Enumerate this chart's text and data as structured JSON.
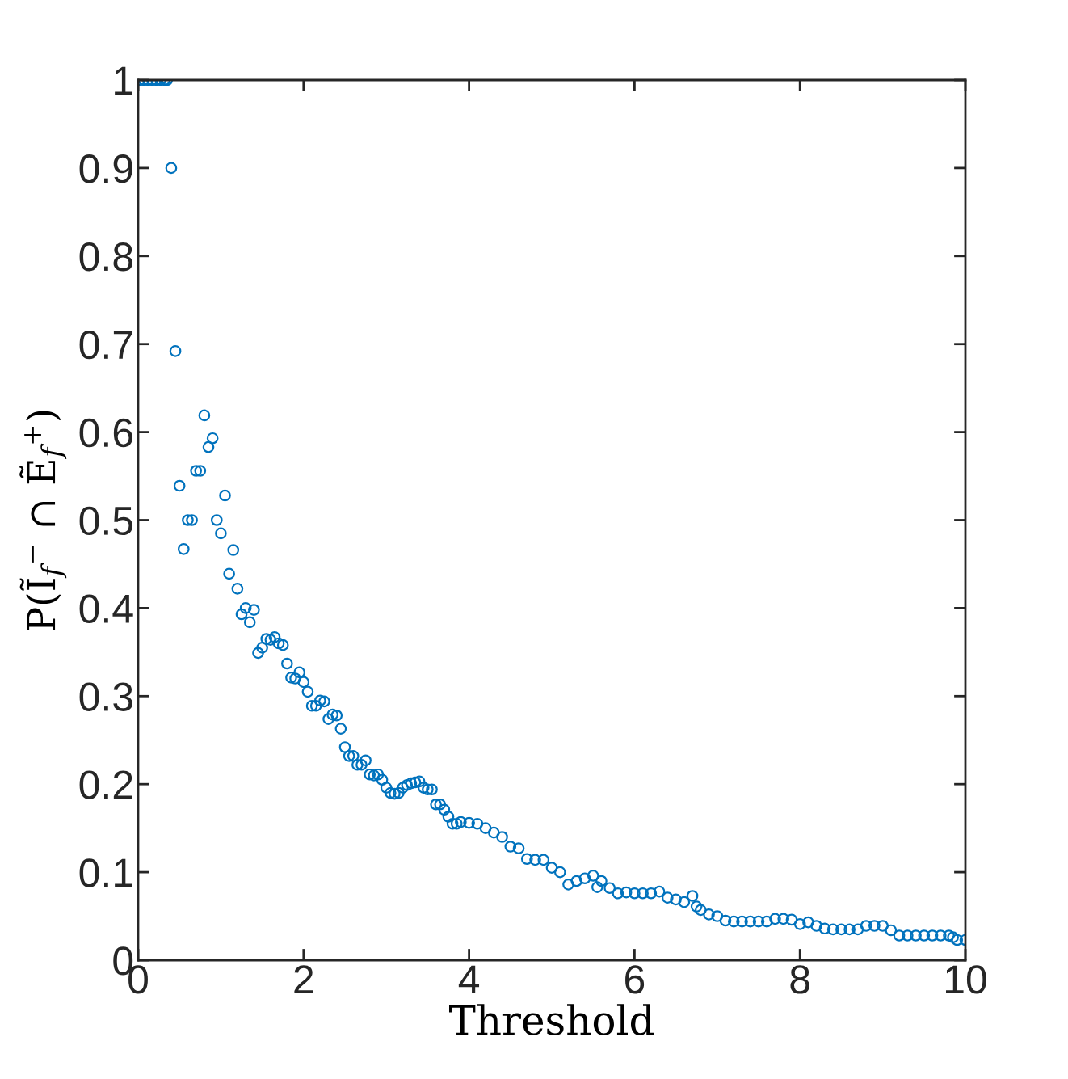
{
  "chart_data": {
    "type": "scatter",
    "xlabel": "Threshold",
    "ylabel": "P(Ĩ$_{f}$$^{−}$ ∩ Ẽ$_{f}$$^{+}$)",
    "marker": "circle",
    "grid": false,
    "legend": false,
    "xlim": [
      0,
      10
    ],
    "ylim": [
      0,
      1
    ],
    "xticks": [
      0,
      2,
      4,
      6,
      8,
      10
    ],
    "yticks": [
      0,
      0.1,
      0.2,
      0.3,
      0.4,
      0.5,
      0.6,
      0.7,
      0.8,
      0.9,
      1
    ],
    "series": [
      {
        "color": "#0072bd",
        "x": [
          0.02,
          0.07,
          0.12,
          0.17,
          0.22,
          0.27,
          0.32,
          0.35,
          0.4,
          0.45,
          0.5,
          0.55,
          0.6,
          0.65,
          0.7,
          0.75,
          0.8,
          0.85,
          0.9,
          0.95,
          1.0,
          1.05,
          1.1,
          1.15,
          1.2,
          1.25,
          1.3,
          1.35,
          1.4,
          1.45,
          1.5,
          1.55,
          1.6,
          1.65,
          1.7,
          1.75,
          1.8,
          1.85,
          1.9,
          1.95,
          2.0,
          2.05,
          2.1,
          2.15,
          2.2,
          2.25,
          2.3,
          2.35,
          2.4,
          2.45,
          2.5,
          2.55,
          2.6,
          2.65,
          2.7,
          2.75,
          2.8,
          2.85,
          2.9,
          2.95,
          3.0,
          3.05,
          3.1,
          3.15,
          3.2,
          3.25,
          3.3,
          3.35,
          3.4,
          3.45,
          3.5,
          3.55,
          3.6,
          3.65,
          3.7,
          3.75,
          3.8,
          3.85,
          3.9,
          4.0,
          4.1,
          4.2,
          4.3,
          4.4,
          4.5,
          4.6,
          4.7,
          4.8,
          4.9,
          5.0,
          5.1,
          5.2,
          5.3,
          5.4,
          5.5,
          5.55,
          5.6,
          5.7,
          5.8,
          5.9,
          6.0,
          6.1,
          6.2,
          6.3,
          6.4,
          6.5,
          6.6,
          6.7,
          6.75,
          6.8,
          6.9,
          7.0,
          7.1,
          7.2,
          7.3,
          7.4,
          7.5,
          7.6,
          7.7,
          7.8,
          7.9,
          8.0,
          8.1,
          8.2,
          8.3,
          8.4,
          8.5,
          8.6,
          8.7,
          8.8,
          8.9,
          9.0,
          9.1,
          9.2,
          9.3,
          9.4,
          9.5,
          9.6,
          9.7,
          9.8,
          9.85,
          9.9,
          10.0
        ],
        "values": [
          1,
          1,
          1,
          1,
          1,
          1,
          1,
          1,
          0.9,
          0.692,
          0.539,
          0.467,
          0.5,
          0.5,
          0.556,
          0.556,
          0.619,
          0.583,
          0.593,
          0.5,
          0.485,
          0.528,
          0.439,
          0.466,
          0.422,
          0.393,
          0.4,
          0.384,
          0.398,
          0.349,
          0.355,
          0.365,
          0.364,
          0.367,
          0.36,
          0.358,
          0.337,
          0.321,
          0.32,
          0.327,
          0.316,
          0.305,
          0.289,
          0.289,
          0.295,
          0.294,
          0.274,
          0.279,
          0.278,
          0.263,
          0.242,
          0.232,
          0.232,
          0.222,
          0.222,
          0.227,
          0.211,
          0.21,
          0.211,
          0.205,
          0.196,
          0.19,
          0.189,
          0.19,
          0.196,
          0.199,
          0.201,
          0.202,
          0.203,
          0.196,
          0.194,
          0.194,
          0.177,
          0.177,
          0.171,
          0.163,
          0.155,
          0.155,
          0.157,
          0.156,
          0.155,
          0.15,
          0.145,
          0.14,
          0.129,
          0.127,
          0.115,
          0.114,
          0.114,
          0.105,
          0.1,
          0.086,
          0.09,
          0.093,
          0.096,
          0.083,
          0.09,
          0.082,
          0.076,
          0.077,
          0.076,
          0.076,
          0.076,
          0.078,
          0.071,
          0.069,
          0.066,
          0.073,
          0.061,
          0.057,
          0.052,
          0.05,
          0.045,
          0.044,
          0.044,
          0.044,
          0.044,
          0.044,
          0.047,
          0.047,
          0.046,
          0.041,
          0.043,
          0.039,
          0.036,
          0.035,
          0.035,
          0.035,
          0.035,
          0.039,
          0.039,
          0.039,
          0.034,
          0.028,
          0.028,
          0.028,
          0.028,
          0.028,
          0.028,
          0.028,
          0.026,
          0.023,
          0.023
        ]
      }
    ]
  }
}
